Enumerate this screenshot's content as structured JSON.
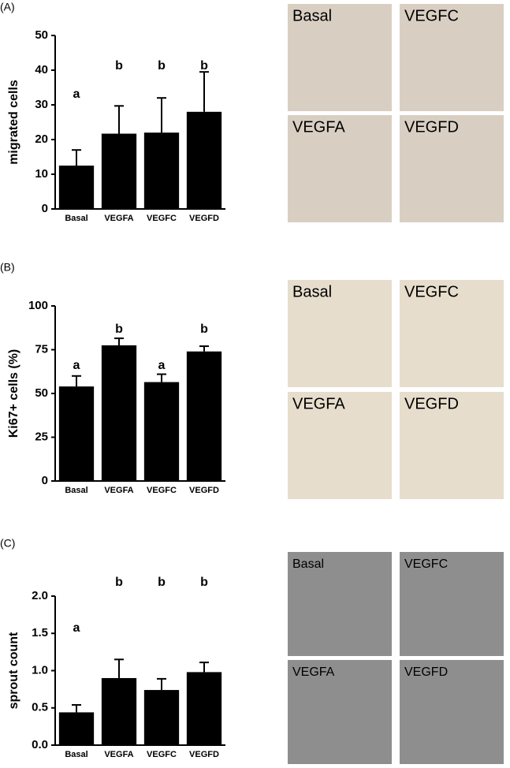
{
  "chart_data": [
    {
      "type": "bar",
      "ylabel": "migrated cells",
      "categories": [
        "Basal",
        "VEGFA",
        "VEGFC",
        "VEGFD"
      ],
      "values": [
        12.5,
        21.7,
        22,
        28
      ],
      "errors": [
        4.5,
        8,
        10,
        11.5
      ],
      "annotations": [
        "a",
        "b",
        "b",
        "b"
      ],
      "color": "#000000",
      "ylim": [
        0,
        50
      ],
      "yticks": [
        0,
        10,
        20,
        30,
        40,
        50
      ]
    },
    {
      "type": "bar",
      "ylabel": "Ki67+ cells (%)",
      "categories": [
        "Basal",
        "VEGFA",
        "VEGFC",
        "VEGFD"
      ],
      "values": [
        54,
        77.5,
        56.5,
        74
      ],
      "errors": [
        6,
        4,
        4.5,
        3
      ],
      "annotations": [
        "a",
        "b",
        "a",
        "b"
      ],
      "color": "#000000",
      "ylim": [
        0,
        100
      ],
      "yticks": [
        0,
        25,
        50,
        75,
        100
      ]
    },
    {
      "type": "bar",
      "ylabel": "sprout count",
      "categories": [
        "Basal",
        "VEGFA",
        "VEGFC",
        "VEGFD"
      ],
      "values": [
        0.44,
        0.9,
        0.74,
        0.98
      ],
      "errors": [
        0.1,
        0.25,
        0.15,
        0.13
      ],
      "annotations": [
        "a",
        "b",
        "b",
        "b"
      ],
      "color": "#000000",
      "ylim": [
        0,
        2
      ],
      "yticks": [
        {
          "value": 0,
          "label": "0.0"
        },
        0.5,
        {
          "value": 1,
          "label": "1.0"
        },
        1.5,
        {
          "value": 2,
          "label": "2.0"
        }
      ]
    }
  ],
  "panels": [
    {
      "label": "(A)",
      "image_labels": [
        "Basal",
        "VEGFC",
        "VEGFA",
        "VEGFD"
      ]
    },
    {
      "label": "(B)",
      "image_labels": [
        "Basal",
        "VEGFC",
        "VEGFA",
        "VEGFD"
      ]
    },
    {
      "label": "(C)",
      "image_labels": [
        "Basal",
        "VEGFC",
        "VEGFA",
        "VEGFD"
      ]
    }
  ]
}
